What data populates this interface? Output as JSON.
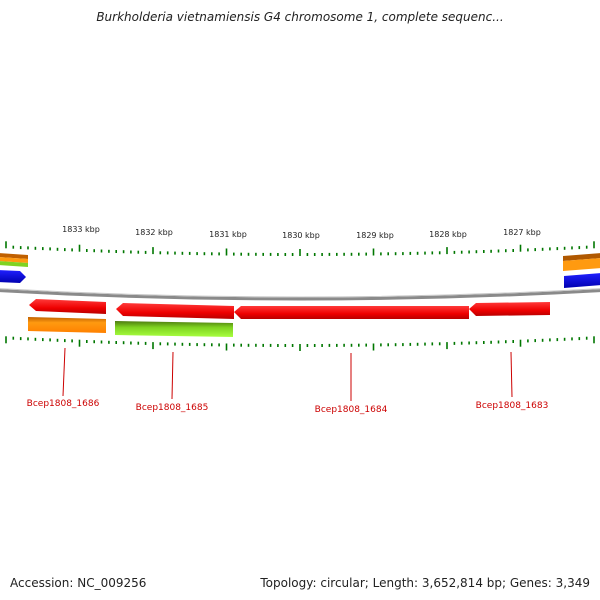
{
  "title": "Burkholderia vietnamiensis G4 chromosome 1, complete sequenc...",
  "footer": {
    "accession": "Accession: NC_009256",
    "summary": "Topology: circular; Length: 3,652,814 bp; Genes: 3,349"
  },
  "scale_labels": [
    "1833 kbp",
    "1832 kbp",
    "1831 kbp",
    "1830 kbp",
    "1829 kbp",
    "1828 kbp",
    "1827 kbp"
  ],
  "genes": [
    {
      "name": "Bcep1808_1686",
      "color": "#ff0000"
    },
    {
      "name": "Bcep1808_1685",
      "color": "#ff0000"
    },
    {
      "name": "Bcep1808_1684",
      "color": "#ff0000"
    },
    {
      "name": "Bcep1808_1683",
      "color": "#ff0000"
    }
  ],
  "colors": {
    "gene_red": "#ff0000",
    "cog_orange": "#ff8c00",
    "cog_green": "#7fd321",
    "cog_blue": "#0000ff",
    "tick_green": "#007700",
    "backbone_gray": "#808080"
  }
}
